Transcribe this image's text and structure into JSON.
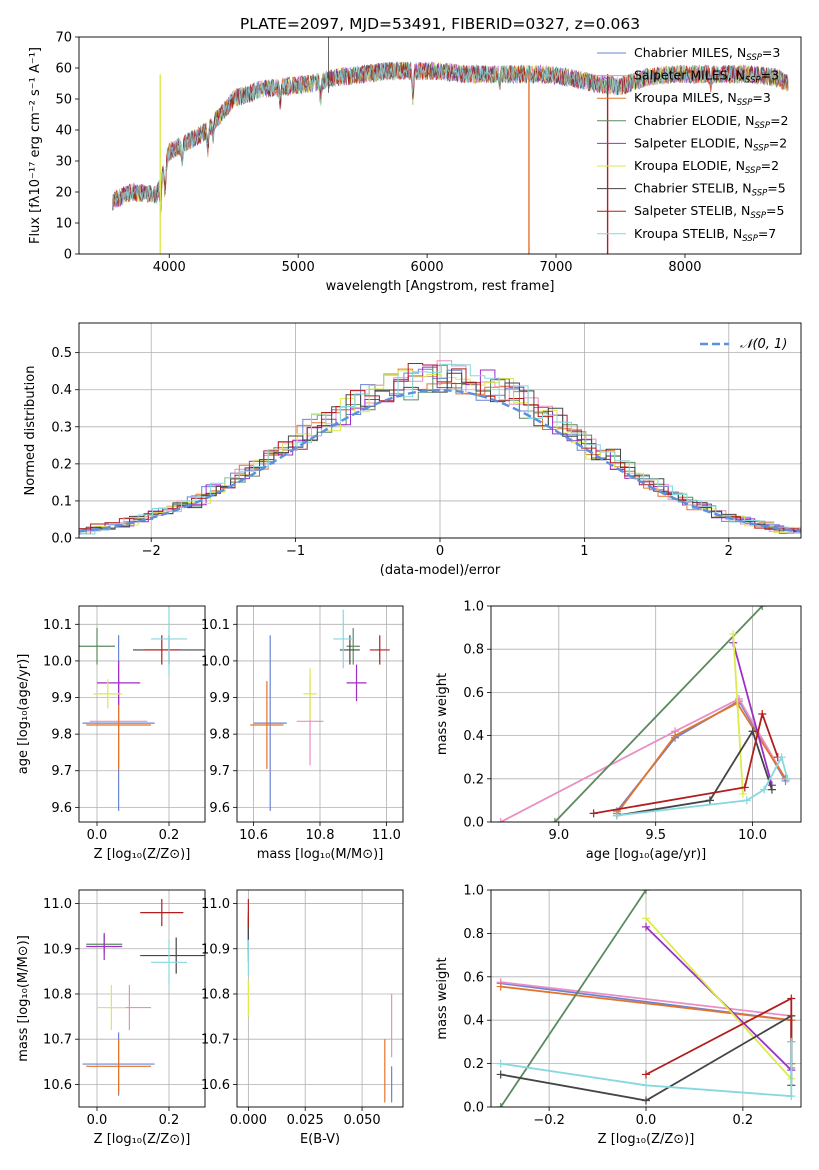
{
  "chart_data": [
    {
      "id": "spectrum",
      "type": "line",
      "title": "PLATE=2097, MJD=53491, FIBERID=0327, z=0.063",
      "xlabel": "wavelength [Angstrom, rest frame]",
      "ylabel": "Flux [fλ10⁻¹⁷ erg cm⁻² s⁻¹ A⁻¹]",
      "xlim": [
        3300,
        8900
      ],
      "ylim": [
        0,
        70
      ],
      "xticks": [
        4000,
        5000,
        6000,
        7000,
        8000
      ],
      "yticks": [
        0,
        10,
        20,
        30,
        40,
        50,
        60,
        70
      ],
      "grid": false,
      "legend_position": "top-right",
      "legend": [
        {
          "label": "Chabrier MILES, N",
          "sub": "SSP",
          "n": "=3",
          "color": "#6a84d6"
        },
        {
          "label": "Salpeter MILES, N",
          "sub": "SSP",
          "n": "=3",
          "color": "#e98fc4"
        },
        {
          "label": "Kroupa MILES, N",
          "sub": "SSP",
          "n": "=3",
          "color": "#e3742c"
        },
        {
          "label": "Chabrier ELODIE, N",
          "sub": "SSP",
          "n": "=2",
          "color": "#5b8a5e"
        },
        {
          "label": "Salpeter ELODIE, N",
          "sub": "SSP",
          "n": "=2",
          "color": "#9d2fc4"
        },
        {
          "label": "Kroupa ELODIE, N",
          "sub": "SSP",
          "n": "=2",
          "color": "#dcea4c"
        },
        {
          "label": "Chabrier STELIB, N",
          "sub": "SSP",
          "n": "=5",
          "color": "#454545"
        },
        {
          "label": "Salpeter STELIB, N",
          "sub": "SSP",
          "n": "=5",
          "color": "#b21e1e"
        },
        {
          "label": "Kroupa STELIB, N",
          "sub": "SSP",
          "n": "=7",
          "color": "#86d8df"
        }
      ],
      "continuum_x": [
        3560,
        3700,
        3900,
        4000,
        4100,
        4300,
        4500,
        4700,
        4900,
        5100,
        5300,
        5500,
        5700,
        5900,
        6100,
        6300,
        6500,
        6700,
        6900,
        7100,
        7300,
        7500,
        7700,
        7900,
        8100,
        8300,
        8500,
        8700,
        8800
      ],
      "continuum_y": [
        17,
        20,
        19,
        33,
        35,
        40,
        50,
        53,
        54,
        55,
        57,
        58,
        59,
        59,
        59,
        58,
        58,
        58,
        58,
        57,
        55,
        54,
        57,
        58,
        58,
        58,
        58,
        57,
        55
      ]
    },
    {
      "id": "residuals",
      "type": "histogram",
      "xlabel": "(data-model)/error",
      "ylabel": "Normed distribution",
      "xlim": [
        -2.5,
        2.5
      ],
      "ylim": [
        0,
        0.58
      ],
      "xticks": [
        -2,
        -1,
        0,
        1,
        2
      ],
      "yticks": [
        0.0,
        0.1,
        0.2,
        0.3,
        0.4,
        0.5
      ],
      "grid": true,
      "legend": "𝒩(0, 1)",
      "legend_position": "top-right",
      "bin_width": 0.1,
      "gaussian": {
        "mean": 0,
        "sigma": 1,
        "color": "#5b8fe0"
      }
    },
    {
      "id": "age-vs-z",
      "type": "errorbar",
      "xlabel": "Z [log₁₀(Z/Z⊙)]",
      "ylabel": "age  [log₁₀(age/yr)]",
      "xlim": [
        -0.05,
        0.3
      ],
      "ylim": [
        9.56,
        10.15
      ],
      "xticks": [
        0.0,
        0.2
      ],
      "yticks": [
        9.6,
        9.7,
        9.8,
        9.9,
        10.0,
        10.1
      ],
      "grid": true,
      "points": [
        {
          "x": 0.06,
          "y": 9.83,
          "xerr": 0.1,
          "yerr": 0.24,
          "color": "#6a84d6"
        },
        {
          "x": 0.06,
          "y": 9.835,
          "xerr": 0.08,
          "yerr": 0.12,
          "color": "#e98fc4"
        },
        {
          "x": 0.06,
          "y": 9.825,
          "xerr": 0.09,
          "yerr": 0.12,
          "color": "#e3742c"
        },
        {
          "x": 0.0,
          "y": 10.04,
          "xerr": 0.05,
          "yerr": 0.05,
          "color": "#5b8a5e"
        },
        {
          "x": 0.06,
          "y": 9.94,
          "xerr": 0.06,
          "yerr": 0.06,
          "color": "#9d2fc4"
        },
        {
          "x": 0.03,
          "y": 9.91,
          "xerr": 0.04,
          "yerr": 0.04,
          "color": "#dcea4c"
        },
        {
          "x": 0.2,
          "y": 10.03,
          "xerr": 0.1,
          "yerr": 0.04,
          "color": "#454545"
        },
        {
          "x": 0.18,
          "y": 10.03,
          "xerr": 0.05,
          "yerr": 0.04,
          "color": "#b21e1e"
        },
        {
          "x": 0.2,
          "y": 10.06,
          "xerr": 0.05,
          "yerr": 0.1,
          "color": "#86d8df"
        }
      ]
    },
    {
      "id": "age-vs-mass",
      "type": "errorbar",
      "xlabel": "mass [log₁₀(M/M⊙)]",
      "ylabel": "",
      "xlim": [
        10.55,
        11.05
      ],
      "ylim": [
        9.56,
        10.15
      ],
      "xticks": [
        10.6,
        10.8,
        11.0
      ],
      "yticks": [
        9.6,
        9.7,
        9.8,
        9.9,
        10.0,
        10.1
      ],
      "grid": true,
      "points": [
        {
          "x": 10.65,
          "y": 9.83,
          "xerr": 0.05,
          "yerr": 0.24,
          "color": "#6a84d6"
        },
        {
          "x": 10.77,
          "y": 9.835,
          "xerr": 0.04,
          "yerr": 0.12,
          "color": "#e98fc4"
        },
        {
          "x": 10.64,
          "y": 9.825,
          "xerr": 0.05,
          "yerr": 0.12,
          "color": "#e3742c"
        },
        {
          "x": 10.9,
          "y": 10.04,
          "xerr": 0.02,
          "yerr": 0.05,
          "color": "#5b8a5e"
        },
        {
          "x": 10.91,
          "y": 9.94,
          "xerr": 0.03,
          "yerr": 0.05,
          "color": "#9d2fc4"
        },
        {
          "x": 10.77,
          "y": 9.91,
          "xerr": 0.02,
          "yerr": 0.07,
          "color": "#dcea4c"
        },
        {
          "x": 10.89,
          "y": 10.03,
          "xerr": 0.03,
          "yerr": 0.04,
          "color": "#454545"
        },
        {
          "x": 10.98,
          "y": 10.03,
          "xerr": 0.03,
          "yerr": 0.04,
          "color": "#b21e1e"
        },
        {
          "x": 10.87,
          "y": 10.06,
          "xerr": 0.03,
          "yerr": 0.08,
          "color": "#86d8df"
        }
      ]
    },
    {
      "id": "weight-vs-age",
      "type": "line",
      "xlabel": "age  [log₁₀(age/yr)]",
      "ylabel": "mass weight",
      "xlim": [
        8.65,
        10.25
      ],
      "ylim": [
        0,
        1.0
      ],
      "xticks": [
        9.0,
        9.5,
        10.0
      ],
      "yticks": [
        0.0,
        0.2,
        0.4,
        0.6,
        0.8,
        1.0
      ],
      "grid": true,
      "series": [
        {
          "color": "#6a84d6",
          "x": [
            9.3,
            9.6,
            9.93,
            10.17
          ],
          "y": [
            0.05,
            0.39,
            0.56,
            0.19
          ]
        },
        {
          "color": "#e98fc4",
          "x": [
            8.7,
            9.6,
            9.93,
            10.17
          ],
          "y": [
            0.0,
            0.42,
            0.57,
            0.2
          ]
        },
        {
          "color": "#e3742c",
          "x": [
            9.3,
            9.6,
            9.92,
            10.17
          ],
          "y": [
            0.04,
            0.4,
            0.55,
            0.2
          ]
        },
        {
          "color": "#5b8a5e",
          "x": [
            8.98,
            10.05
          ],
          "y": [
            0.0,
            1.0
          ]
        },
        {
          "color": "#9d2fc4",
          "x": [
            9.9,
            10.1
          ],
          "y": [
            0.83,
            0.17
          ]
        },
        {
          "color": "#dcea4c",
          "x": [
            9.9,
            9.95
          ],
          "y": [
            0.87,
            0.13
          ]
        },
        {
          "color": "#454545",
          "x": [
            9.3,
            9.78,
            10.0,
            10.1
          ],
          "y": [
            0.03,
            0.1,
            0.42,
            0.15
          ]
        },
        {
          "color": "#b21e1e",
          "x": [
            9.18,
            9.96,
            10.05,
            10.13
          ],
          "y": [
            0.04,
            0.16,
            0.5,
            0.3
          ]
        },
        {
          "color": "#86d8df",
          "x": [
            9.3,
            9.97,
            10.06,
            10.15,
            10.18
          ],
          "y": [
            0.03,
            0.1,
            0.15,
            0.3,
            0.2
          ]
        }
      ]
    },
    {
      "id": "mass-vs-z",
      "type": "errorbar",
      "xlabel": "Z [log₁₀(Z/Z⊙)]",
      "ylabel": "mass [log₁₀(M/M⊙)]",
      "xlim": [
        -0.05,
        0.3
      ],
      "ylim": [
        10.55,
        11.03
      ],
      "xticks": [
        0.0,
        0.2
      ],
      "yticks": [
        10.6,
        10.7,
        10.8,
        10.9,
        11.0
      ],
      "grid": true,
      "points": [
        {
          "x": 0.06,
          "y": 10.645,
          "xerr": 0.1,
          "yerr": 0.07,
          "color": "#6a84d6"
        },
        {
          "x": 0.09,
          "y": 10.77,
          "xerr": 0.06,
          "yerr": 0.05,
          "color": "#e98fc4"
        },
        {
          "x": 0.06,
          "y": 10.64,
          "xerr": 0.09,
          "yerr": 0.06,
          "color": "#e3742c"
        },
        {
          "x": 0.02,
          "y": 10.91,
          "xerr": 0.05,
          "yerr": 0.02,
          "color": "#5b8a5e"
        },
        {
          "x": 0.02,
          "y": 10.905,
          "xerr": 0.05,
          "yerr": 0.03,
          "color": "#9d2fc4"
        },
        {
          "x": 0.04,
          "y": 10.77,
          "xerr": 0.04,
          "yerr": 0.05,
          "color": "#dcea4c"
        },
        {
          "x": 0.22,
          "y": 10.885,
          "xerr": 0.1,
          "yerr": 0.04,
          "color": "#454545"
        },
        {
          "x": 0.18,
          "y": 10.98,
          "xerr": 0.06,
          "yerr": 0.03,
          "color": "#b21e1e"
        },
        {
          "x": 0.2,
          "y": 10.87,
          "xerr": 0.05,
          "yerr": 0.05,
          "color": "#86d8df"
        }
      ]
    },
    {
      "id": "mass-vs-ebv",
      "type": "errorbar",
      "xlabel": "E(B-V)",
      "ylabel": "",
      "xlim": [
        -0.005,
        0.068
      ],
      "ylim": [
        10.55,
        11.03
      ],
      "xticks": [
        0.0,
        0.025,
        0.05
      ],
      "xtick_labels": [
        "0.000",
        "0.025",
        "0.050"
      ],
      "yticks": [
        10.6,
        10.7,
        10.8,
        10.9,
        11.0
      ],
      "grid": true,
      "points": [
        {
          "x": 0.063,
          "y": 10.6,
          "xerr": 0,
          "yerr": 0.04,
          "color": "#6a84d6"
        },
        {
          "x": 0.063,
          "y": 10.73,
          "xerr": 0,
          "yerr": 0.07,
          "color": "#e98fc4"
        },
        {
          "x": 0.06,
          "y": 10.63,
          "xerr": 0,
          "yerr": 0.07,
          "color": "#e3742c"
        },
        {
          "x": 0.0,
          "y": 10.91,
          "xerr": 0,
          "yerr": 0.04,
          "color": "#5b8a5e"
        },
        {
          "x": 0.0,
          "y": 10.93,
          "xerr": 0,
          "yerr": 0.04,
          "color": "#9d2fc4"
        },
        {
          "x": 0.0,
          "y": 10.79,
          "xerr": 0,
          "yerr": 0.04,
          "color": "#dcea4c"
        },
        {
          "x": 0.0,
          "y": 10.95,
          "xerr": 0,
          "yerr": 0.03,
          "color": "#454545"
        },
        {
          "x": 0.0,
          "y": 10.98,
          "xerr": 0,
          "yerr": 0.03,
          "color": "#b21e1e"
        },
        {
          "x": 0.0,
          "y": 10.88,
          "xerr": 0,
          "yerr": 0.04,
          "color": "#86d8df"
        }
      ]
    },
    {
      "id": "weight-vs-z",
      "type": "line",
      "xlabel": "Z [log₁₀(Z/Z⊙)]",
      "ylabel": "mass weight",
      "xlim": [
        -0.32,
        0.32
      ],
      "ylim": [
        0,
        1.0
      ],
      "xticks": [
        -0.2,
        0.0,
        0.2
      ],
      "xtick_labels": [
        "−0.2",
        "0.0",
        "0.2"
      ],
      "yticks": [
        0.0,
        0.2,
        0.4,
        0.6,
        0.8,
        1.0
      ],
      "grid": true,
      "series": [
        {
          "color": "#6a84d6",
          "x": [
            -0.3,
            0.3,
            0.3
          ],
          "y": [
            0.57,
            0.4,
            0.18
          ]
        },
        {
          "color": "#e98fc4",
          "x": [
            -0.3,
            0.3,
            0.3
          ],
          "y": [
            0.575,
            0.42,
            0.2
          ]
        },
        {
          "color": "#e3742c",
          "x": [
            -0.3,
            0.3,
            0.3
          ],
          "y": [
            0.555,
            0.4,
            0.2
          ]
        },
        {
          "color": "#5b8a5e",
          "x": [
            -0.3,
            0.0
          ],
          "y": [
            0.0,
            1.0
          ]
        },
        {
          "color": "#9d2fc4",
          "x": [
            0.0,
            0.3
          ],
          "y": [
            0.83,
            0.17
          ]
        },
        {
          "color": "#dcea4c",
          "x": [
            0.0,
            0.3
          ],
          "y": [
            0.87,
            0.13
          ]
        },
        {
          "color": "#454545",
          "x": [
            -0.3,
            0.0,
            0.3,
            0.3
          ],
          "y": [
            0.15,
            0.03,
            0.42,
            0.1
          ]
        },
        {
          "color": "#b21e1e",
          "x": [
            0.0,
            0.3,
            0.3
          ],
          "y": [
            0.15,
            0.5,
            0.3
          ]
        },
        {
          "color": "#86d8df",
          "x": [
            -0.3,
            0.0,
            0.3,
            0.3
          ],
          "y": [
            0.2,
            0.1,
            0.05,
            0.3
          ]
        }
      ]
    }
  ]
}
